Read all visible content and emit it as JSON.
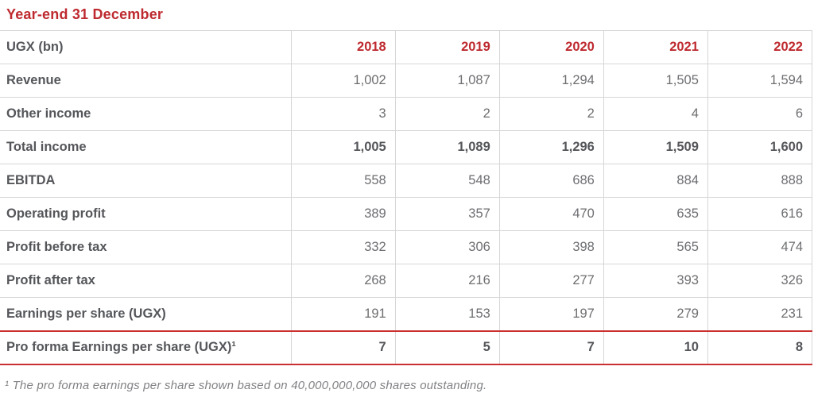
{
  "page": {
    "title": "Year-end 31 December"
  },
  "table": {
    "header": {
      "label": "UGX (bn)",
      "years": [
        "2018",
        "2019",
        "2020",
        "2021",
        "2022"
      ]
    },
    "rows": [
      {
        "label": "Revenue",
        "values": [
          "1,002",
          "1,087",
          "1,294",
          "1,505",
          "1,594"
        ],
        "bold": false
      },
      {
        "label": "Other income",
        "values": [
          "3",
          "2",
          "2",
          "4",
          "6"
        ],
        "bold": false
      },
      {
        "label": "Total income",
        "values": [
          "1,005",
          "1,089",
          "1,296",
          "1,509",
          "1,600"
        ],
        "bold": true
      },
      {
        "label": "EBITDA",
        "values": [
          "558",
          "548",
          "686",
          "884",
          "888"
        ],
        "bold": false
      },
      {
        "label": "Operating profit",
        "values": [
          "389",
          "357",
          "470",
          "635",
          "616"
        ],
        "bold": false
      },
      {
        "label": "Profit before tax",
        "values": [
          "332",
          "306",
          "398",
          "565",
          "474"
        ],
        "bold": false
      },
      {
        "label": "Profit after tax",
        "values": [
          "268",
          "216",
          "277",
          "393",
          "326"
        ],
        "bold": false
      },
      {
        "label": "Earnings per share (UGX)",
        "values": [
          "191",
          "153",
          "197",
          "279",
          "231"
        ],
        "bold": false
      },
      {
        "label": "Pro forma Earnings per share (UGX)¹",
        "values": [
          "7",
          "5",
          "7",
          "10",
          "8"
        ],
        "bold": true,
        "highlighted": true
      }
    ]
  },
  "footnote": "¹ The pro forma earnings per share shown based on 40,000,000,000 shares outstanding.",
  "colors": {
    "accent_red": "#be2a2f",
    "highlight_border_red": "#c9302f",
    "label_gray": "#54565a",
    "value_gray": "#6d6e71",
    "border_gray": "#d5d6d7",
    "footnote_gray": "#818285"
  }
}
